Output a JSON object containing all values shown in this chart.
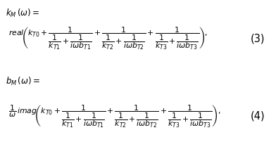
{
  "eq1_label": "$k_{M}\\,(\\omega) =$",
  "eq1_body": "$\\mathit{real}\\!\\left(k_{T0}+\\dfrac{1}{\\dfrac{1}{k_{T1}}+\\dfrac{1}{i\\omega b_{T1}}}+\\dfrac{1}{\\dfrac{1}{k_{T2}}+\\dfrac{1}{i\\omega b_{T2}}}+\\dfrac{1}{\\dfrac{1}{k_{T3}}+\\dfrac{1}{i\\omega b_{T3}}}\\right),$",
  "eq1_number": "(3)",
  "eq2_label": "$b_{M}\\,(\\omega) =$",
  "eq2_body": "$\\dfrac{1}{\\omega}\\,\\mathit{imag}\\!\\left(k_{T0}+\\dfrac{1}{\\dfrac{1}{k_{T1}}+\\dfrac{1}{i\\omega b_{T1}}}+\\dfrac{1}{\\dfrac{1}{k_{T2}}+\\dfrac{1}{i\\omega b_{T2}}}+\\dfrac{1}{\\dfrac{1}{k_{T3}}+\\dfrac{1}{i\\omega b_{T3}}}\\right),$",
  "eq2_number": "(4)",
  "bg_color": "#ffffff",
  "text_color": "#000000",
  "label_fontsize": 8.5,
  "body_fontsize": 7.8,
  "number_fontsize": 10.5
}
